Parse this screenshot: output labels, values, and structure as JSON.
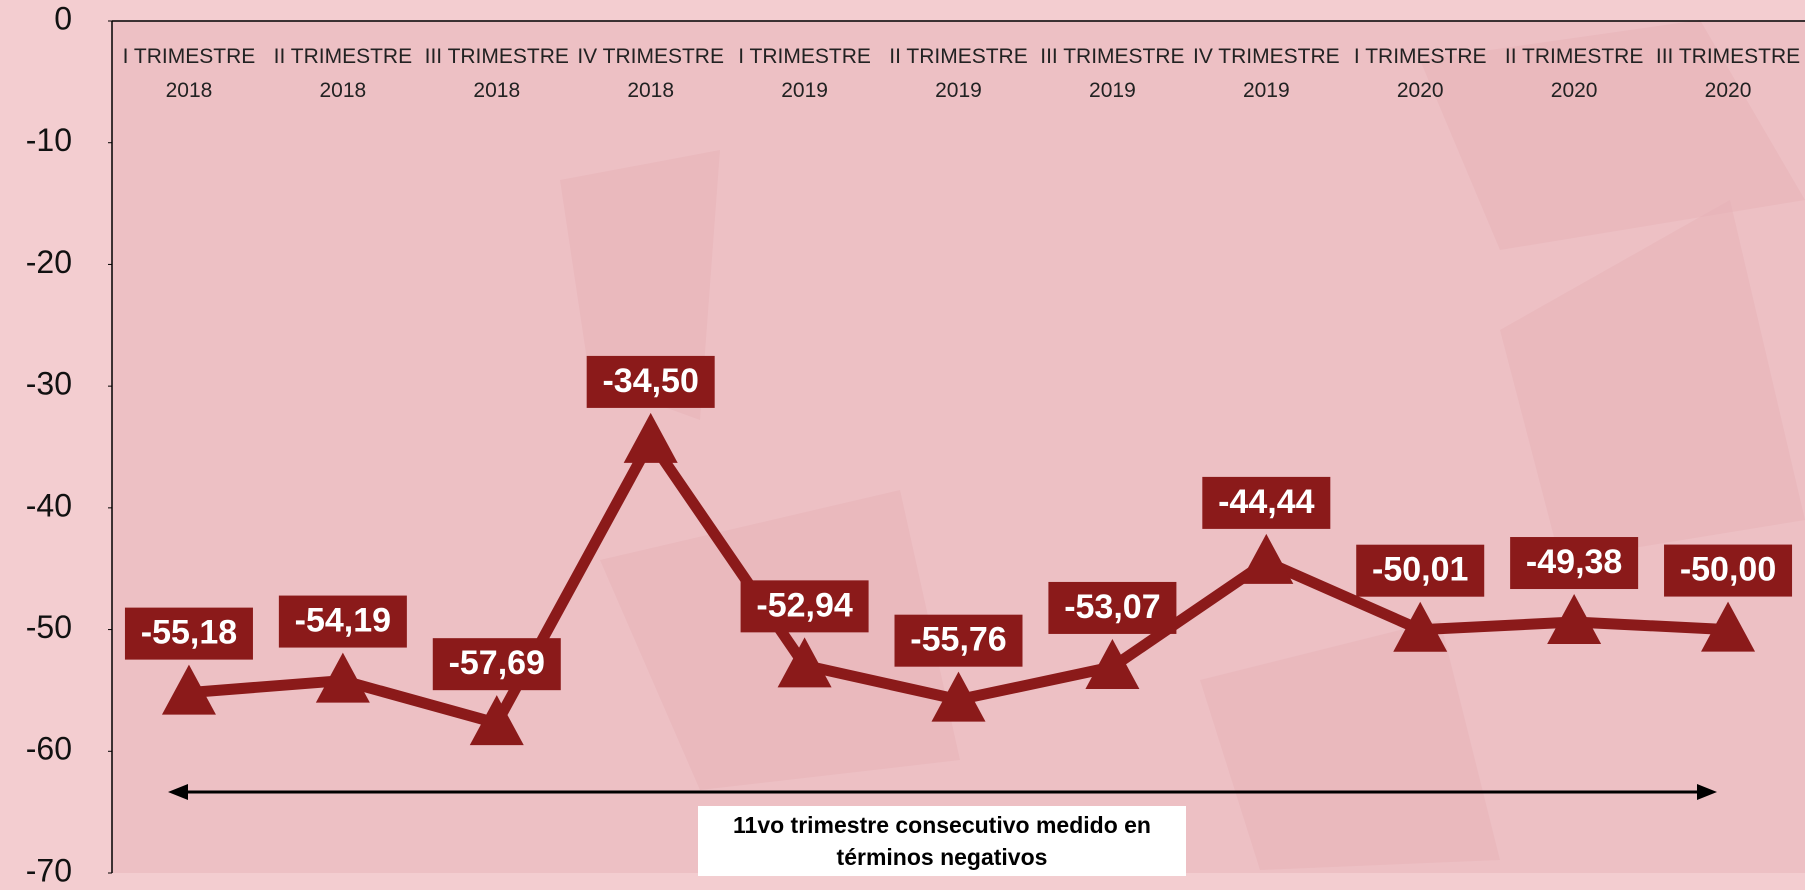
{
  "chart_data": {
    "type": "line",
    "categories": [
      "I TRIMESTRE 2018",
      "II TRIMESTRE 2018",
      "III TRIMESTRE 2018",
      "IV TRIMESTRE 2018",
      "I TRIMESTRE 2019",
      "II TRIMESTRE 2019",
      "III TRIMESTRE 2019",
      "IV TRIMESTRE 2019",
      "I TRIMESTRE 2020",
      "II TRIMESTRE 2020",
      "III TRIMESTRE 2020"
    ],
    "series": [
      {
        "color": "#8b1a1a",
        "values": [
          -55.18,
          -54.19,
          -57.69,
          -34.5,
          -52.94,
          -55.76,
          -53.07,
          -44.44,
          -50.01,
          -49.38,
          -50.0
        ],
        "value_labels": [
          "-55,18",
          "-54,19",
          "-57,69",
          "-34,50",
          "-52,94",
          "-55,76",
          "-53,07",
          "-44,44",
          "-50,01",
          "-49,38",
          "-50,00"
        ]
      }
    ],
    "ylim": [
      -70,
      0
    ],
    "yticks": [
      0,
      -10,
      -20,
      -30,
      -40,
      -50,
      -60,
      -70
    ],
    "annotation": "11vo trimestre consecutivo medido en términos negativos"
  }
}
